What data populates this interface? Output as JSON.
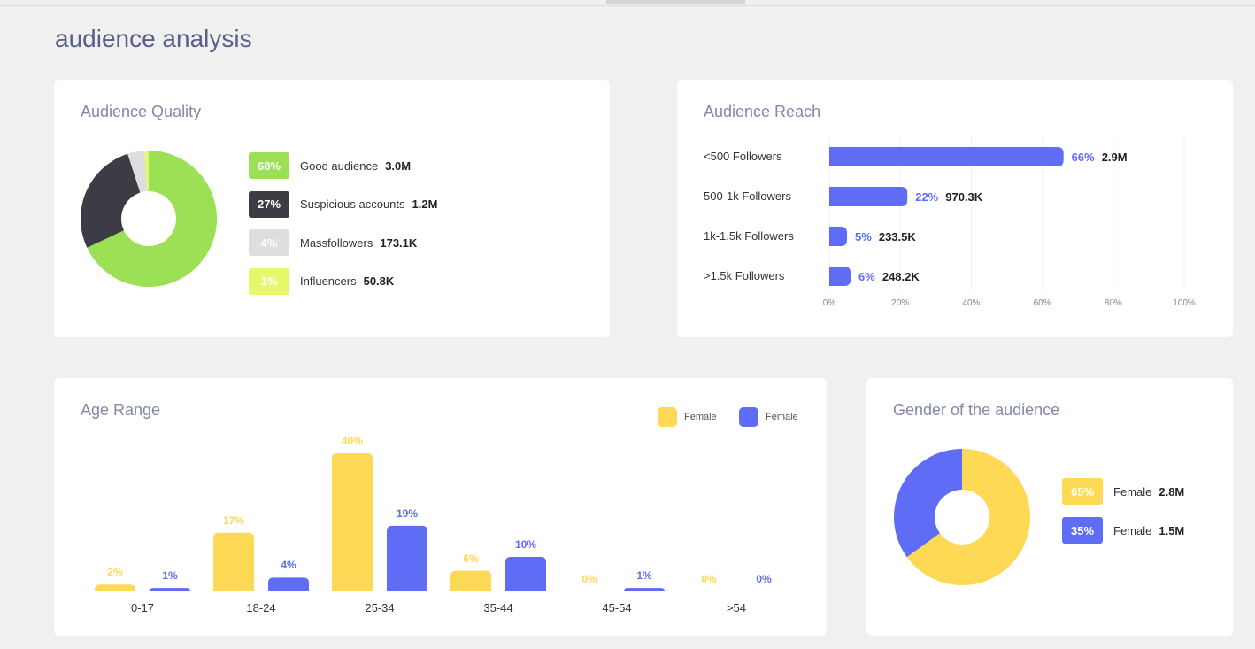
{
  "page_title": "audience analysis",
  "colors": {
    "good": "#9be055",
    "suspicious": "#3b3c44",
    "mass": "#dcdee0",
    "influencer": "#e6f76a",
    "blue": "#5f6cf5",
    "yellow": "#fed955"
  },
  "quality": {
    "title": "Audience Quality",
    "items": [
      {
        "pct": "68%",
        "label": "Good audience",
        "value": "3.0M"
      },
      {
        "pct": "27%",
        "label": "Suspicious accounts",
        "value": "1.2M"
      },
      {
        "pct": "4%",
        "label": "Massfollowers",
        "value": "173.1K"
      },
      {
        "pct": "1%",
        "label": "Influencers",
        "value": "50.8K"
      }
    ]
  },
  "reach": {
    "title": "Audience Reach",
    "items": [
      {
        "label": "<500 Followers",
        "pct": "66%",
        "value": "2.9M"
      },
      {
        "label": "500-1k Followers",
        "pct": "22%",
        "value": "970.3K"
      },
      {
        "label": "1k-1.5k Followers",
        "pct": "5%",
        "value": "233.5K"
      },
      {
        "label": ">1.5k Followers",
        "pct": "6%",
        "value": "248.2K"
      }
    ],
    "ticks": [
      "0%",
      "20%",
      "40%",
      "60%",
      "80%",
      "100%"
    ]
  },
  "age": {
    "title": "Age Range",
    "legend": [
      {
        "name": "Female"
      },
      {
        "name": "Female"
      }
    ],
    "categories": [
      "0-17",
      "18-24",
      "25-34",
      "35-44",
      "45-54",
      ">54"
    ],
    "series_a_labels": [
      "2%",
      "17%",
      "40%",
      "6%",
      "0%",
      "0%"
    ],
    "series_b_labels": [
      "1%",
      "4%",
      "19%",
      "10%",
      "1%",
      "0%"
    ]
  },
  "gender": {
    "title": "Gender of the audience",
    "items": [
      {
        "pct": "65%",
        "label": "Female",
        "value": "2.8M"
      },
      {
        "pct": "35%",
        "label": "Female",
        "value": "1.5M"
      }
    ]
  },
  "chart_data": [
    {
      "type": "pie",
      "title": "Audience Quality",
      "categories": [
        "Good audience",
        "Suspicious accounts",
        "Massfollowers",
        "Influencers"
      ],
      "values": [
        68,
        27,
        4,
        1
      ]
    },
    {
      "type": "bar",
      "orientation": "horizontal",
      "title": "Audience Reach",
      "categories": [
        "<500 Followers",
        "500-1k Followers",
        "1k-1.5k Followers",
        ">1.5k Followers"
      ],
      "values": [
        66,
        22,
        5,
        6
      ],
      "xlim": [
        0,
        100
      ],
      "grid": true
    },
    {
      "type": "bar",
      "title": "Age Range",
      "categories": [
        "0-17",
        "18-24",
        "25-34",
        "35-44",
        "45-54",
        ">54"
      ],
      "series": [
        {
          "name": "Female",
          "values": [
            2,
            17,
            40,
            6,
            0,
            0
          ]
        },
        {
          "name": "Female",
          "values": [
            1,
            4,
            19,
            10,
            1,
            0
          ]
        }
      ],
      "legend": "top-right"
    },
    {
      "type": "pie",
      "title": "Gender of the audience",
      "categories": [
        "Female",
        "Female"
      ],
      "values": [
        65,
        35
      ]
    }
  ]
}
